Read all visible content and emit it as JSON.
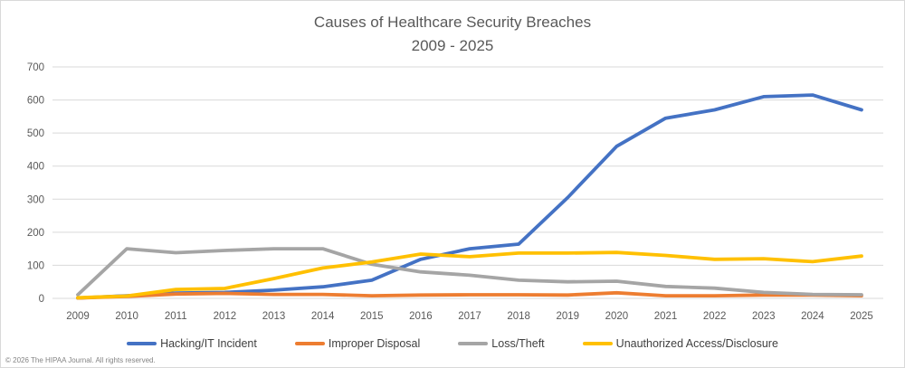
{
  "title": {
    "line1": "Causes of Healthcare Security Breaches",
    "line2": "2009 - 2025"
  },
  "footer": {
    "copyright": "© 2026 The HIPAA Journal. All rights reserved."
  },
  "colors": {
    "background": "#ffffff",
    "border": "#d9d9d9",
    "gridline": "#d9d9d9",
    "tick_text": "#595959",
    "title_text": "#595959",
    "legend_text": "#3f3f3f",
    "series_blue": "#4472c4",
    "series_orange": "#ed7d31",
    "series_gray": "#a5a5a5",
    "series_yellow": "#ffc000"
  },
  "chart_data": {
    "type": "line",
    "title": "Causes of Healthcare Security Breaches 2009 - 2025",
    "xlabel": "",
    "ylabel": "",
    "ylim": [
      0,
      700
    ],
    "ytick_step": 100,
    "grid": true,
    "legend_position": "bottom",
    "categories": [
      "2009",
      "2010",
      "2011",
      "2012",
      "2013",
      "2014",
      "2015",
      "2016",
      "2017",
      "2018",
      "2019",
      "2020",
      "2021",
      "2022",
      "2023",
      "2024",
      "2025"
    ],
    "series": [
      {
        "name": "Hacking/IT Incident",
        "color": "#4472c4",
        "values": [
          1,
          8,
          16,
          18,
          25,
          35,
          55,
          118,
          150,
          164,
          305,
          460,
          545,
          570,
          610,
          615,
          570
        ]
      },
      {
        "name": "Improper Disposal",
        "color": "#ed7d31",
        "values": [
          1,
          6,
          13,
          15,
          12,
          12,
          8,
          10,
          11,
          11,
          10,
          17,
          8,
          8,
          10,
          10,
          8
        ]
      },
      {
        "name": "Loss/Theft",
        "color": "#a5a5a5",
        "values": [
          11,
          150,
          138,
          145,
          150,
          150,
          103,
          80,
          70,
          55,
          50,
          52,
          36,
          31,
          18,
          12,
          11
        ]
      },
      {
        "name": "Unauthorized Access/Disclosure",
        "color": "#ffc000",
        "values": [
          2,
          7,
          27,
          30,
          60,
          92,
          110,
          134,
          126,
          137,
          137,
          139,
          130,
          118,
          120,
          111,
          128
        ]
      }
    ]
  }
}
